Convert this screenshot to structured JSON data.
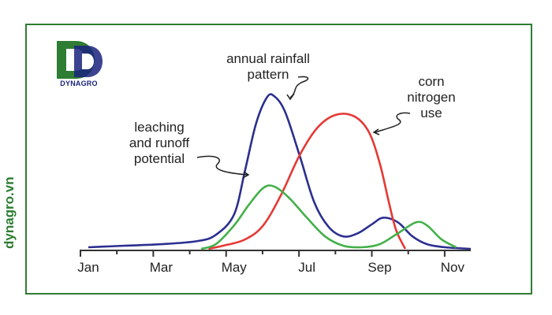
{
  "watermark": {
    "side_text": "dynagro.vn",
    "logo_text": "DYNAGRO",
    "brand_color": "#2e7d32",
    "logo_color": "#1a237e"
  },
  "chart_data": {
    "type": "line",
    "title": "",
    "xlabel": "",
    "ylabel": "",
    "x_ticks": [
      "Jan",
      "Mar",
      "May",
      "Jul",
      "Sep",
      "Nov"
    ],
    "xlim": [
      0,
      10.5
    ],
    "ylim": [
      0,
      100
    ],
    "annotations": {
      "rainfall": [
        "annual rainfall",
        "pattern"
      ],
      "nitrogen": [
        "corn",
        "nitrogen",
        "use"
      ],
      "leaching": [
        "leaching",
        "and runoff",
        "potential"
      ]
    },
    "series": [
      {
        "key": "rainfall",
        "color": "#2b2f8f",
        "points": [
          [
            0,
            1
          ],
          [
            1,
            2
          ],
          [
            2,
            3
          ],
          [
            3,
            5
          ],
          [
            3.5,
            9
          ],
          [
            4,
            22
          ],
          [
            4.3,
            50
          ],
          [
            4.6,
            80
          ],
          [
            4.9,
            97
          ],
          [
            5.1,
            98
          ],
          [
            5.4,
            88
          ],
          [
            5.8,
            60
          ],
          [
            6.2,
            30
          ],
          [
            6.6,
            14
          ],
          [
            7,
            8
          ],
          [
            7.4,
            10
          ],
          [
            7.8,
            16
          ],
          [
            8.1,
            20
          ],
          [
            8.5,
            17
          ],
          [
            8.9,
            8
          ],
          [
            9.3,
            3
          ],
          [
            9.8,
            1
          ],
          [
            10.5,
            0
          ]
        ]
      },
      {
        "key": "nitrogen",
        "color": "#e53935",
        "points": [
          [
            3.3,
            0
          ],
          [
            3.7,
            2
          ],
          [
            4.3,
            6
          ],
          [
            4.8,
            15
          ],
          [
            5.3,
            35
          ],
          [
            5.8,
            60
          ],
          [
            6.3,
            78
          ],
          [
            6.8,
            86
          ],
          [
            7.3,
            85
          ],
          [
            7.7,
            75
          ],
          [
            8,
            55
          ],
          [
            8.25,
            30
          ],
          [
            8.45,
            12
          ],
          [
            8.7,
            0
          ]
        ]
      },
      {
        "key": "leaching",
        "color": "#43b049",
        "points": [
          [
            3.1,
            0
          ],
          [
            3.5,
            3
          ],
          [
            4,
            15
          ],
          [
            4.4,
            28
          ],
          [
            4.8,
            39
          ],
          [
            5.1,
            40
          ],
          [
            5.5,
            33
          ],
          [
            6,
            20
          ],
          [
            6.5,
            8
          ],
          [
            7,
            2
          ],
          [
            7.5,
            1
          ],
          [
            8,
            3
          ],
          [
            8.5,
            10
          ],
          [
            9,
            17
          ],
          [
            9.3,
            15
          ],
          [
            9.7,
            6
          ],
          [
            10.1,
            1
          ]
        ]
      }
    ]
  }
}
